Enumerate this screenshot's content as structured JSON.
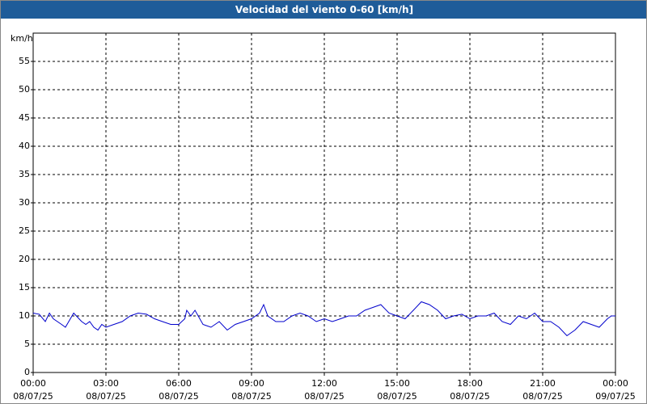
{
  "chart_data": {
    "type": "line",
    "title": "Velocidad del viento 0-60 [km/h]",
    "y_label": "km/h",
    "x": [
      0,
      0.25,
      0.5,
      0.67,
      0.83,
      1.17,
      1.33,
      1.67,
      2,
      2.17,
      2.33,
      2.5,
      2.67,
      2.83,
      3,
      3.33,
      3.67,
      4,
      4.33,
      4.67,
      5,
      5.33,
      5.67,
      6,
      6.25,
      6.33,
      6.5,
      6.67,
      7,
      7.33,
      7.67,
      8,
      8.33,
      8.67,
      9,
      9.33,
      9.5,
      9.67,
      10,
      10.33,
      10.67,
      11,
      11.33,
      11.67,
      12,
      12.33,
      12.67,
      13,
      13.33,
      13.67,
      14,
      14.33,
      14.67,
      15,
      15.33,
      15.67,
      16,
      16.33,
      16.67,
      17,
      17.33,
      17.67,
      18,
      18.33,
      18.67,
      19,
      19.33,
      19.67,
      20,
      20.33,
      20.67,
      21,
      21.33,
      21.67,
      22,
      22.33,
      22.67,
      23,
      23.33,
      23.67,
      23.83,
      24
    ],
    "series": [
      {
        "name": "Velocidad del viento",
        "color": "#0000cc",
        "values": [
          10.5,
          10.3,
          9,
          10.5,
          9.5,
          8.5,
          8,
          10.5,
          9,
          8.5,
          9,
          8,
          7.5,
          8.5,
          8,
          8.5,
          9,
          10,
          10.5,
          10.3,
          9.5,
          9,
          8.5,
          8.5,
          9.5,
          11,
          10,
          11,
          8.5,
          8,
          9,
          7.5,
          8.5,
          9,
          9.5,
          10.5,
          12,
          10,
          9,
          9,
          10,
          10.5,
          10,
          9,
          9.5,
          9,
          9.5,
          10,
          10,
          11,
          11.5,
          12,
          10.5,
          10,
          9.5,
          11,
          12.5,
          12,
          11,
          9.5,
          10,
          10.3,
          9.5,
          10,
          10,
          10.5,
          9,
          8.5,
          10,
          9.5,
          10.5,
          9,
          9,
          8,
          6.5,
          7.5,
          9,
          8.5,
          8,
          9.5,
          10,
          10
        ]
      }
    ],
    "xlim": [
      0,
      24
    ],
    "xticks": [
      {
        "value": 0,
        "label": "00:00\n08/07/25"
      },
      {
        "value": 3,
        "label": "03:00\n08/07/25"
      },
      {
        "value": 6,
        "label": "06:00\n08/07/25"
      },
      {
        "value": 9,
        "label": "09:00\n08/07/25"
      },
      {
        "value": 12,
        "label": "12:00\n08/07/25"
      },
      {
        "value": 15,
        "label": "15:00\n08/07/25"
      },
      {
        "value": 18,
        "label": "18:00\n08/07/25"
      },
      {
        "value": 21,
        "label": "21:00\n08/07/25"
      },
      {
        "value": 24,
        "label": "00:00\n09/07/25"
      }
    ],
    "ylim": [
      0,
      60
    ],
    "yticks": [
      0,
      5,
      10,
      15,
      20,
      25,
      30,
      35,
      40,
      45,
      50,
      55
    ],
    "grid": true
  }
}
